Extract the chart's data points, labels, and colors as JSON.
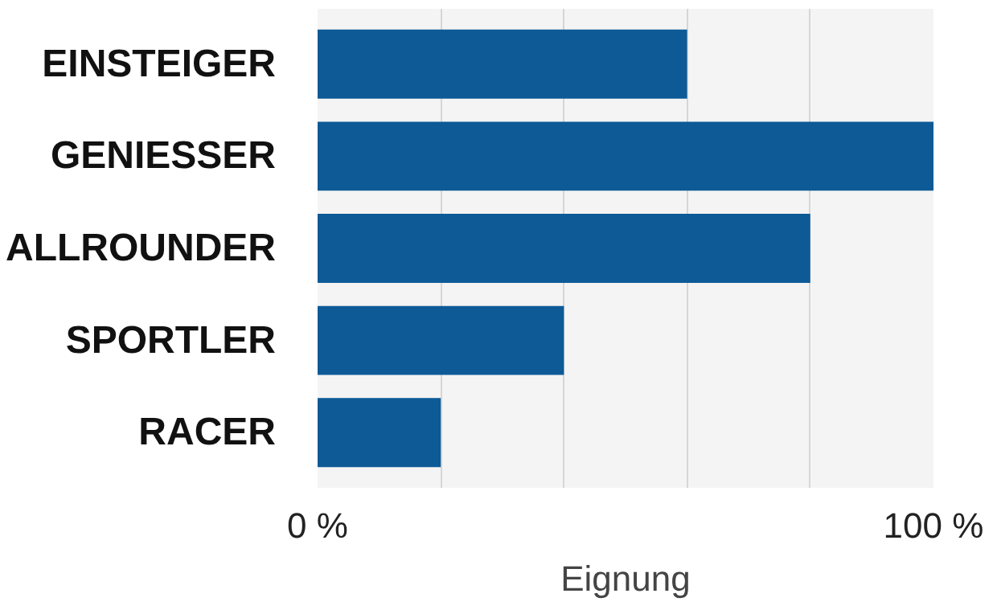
{
  "chart_data": {
    "type": "bar",
    "orientation": "horizontal",
    "xlabel": "Eignung",
    "categories": [
      "EINSTEIGER",
      "GENIESSER",
      "ALLROUNDER",
      "SPORTLER",
      "RACER"
    ],
    "values": [
      60,
      100,
      80,
      40,
      20
    ],
    "color": "#0d5a96",
    "xlim": [
      0,
      100
    ],
    "xticks": [
      {
        "value": 0,
        "label": "0 %"
      },
      {
        "value": 20,
        "label": null
      },
      {
        "value": 40,
        "label": null
      },
      {
        "value": 60,
        "label": null
      },
      {
        "value": 80,
        "label": null
      },
      {
        "value": 100,
        "label": "100 %"
      }
    ],
    "grid": "x"
  }
}
